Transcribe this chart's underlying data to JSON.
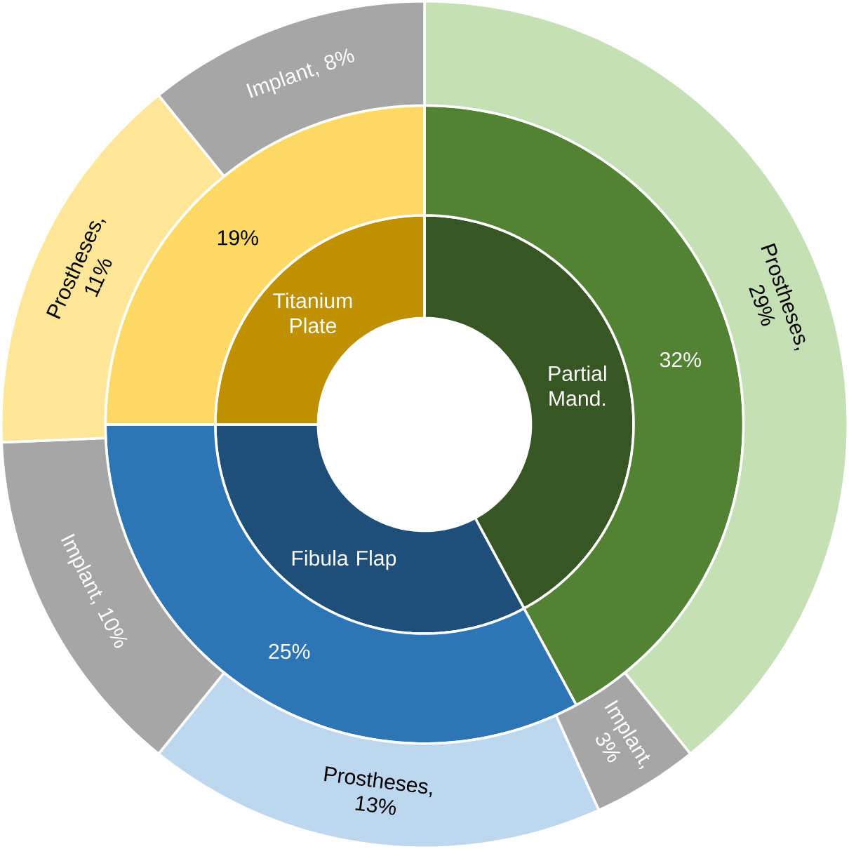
{
  "chart_data": [
    {
      "type": "donut",
      "categories": [
        "Partial Mand.",
        "Fibula Flap",
        "Titanium Plate"
      ],
      "values": [
        42.1,
        32.9,
        25
      ],
      "colors": [
        "#375623",
        "#1f4e79",
        "#bf9000"
      ]
    },
    {
      "type": "donut",
      "categories": [
        null,
        null,
        null
      ],
      "values": [
        32,
        25,
        19
      ],
      "colors": [
        "#548235",
        "#2e75b6",
        "#ffd966"
      ],
      "value_labels": [
        "32%",
        "25%",
        "19%"
      ]
    },
    {
      "type": "donut",
      "categories": [
        null,
        null,
        null,
        null,
        null,
        null
      ],
      "values": [
        29,
        3,
        13,
        10,
        11,
        8
      ],
      "colors": [
        "#c5e0b4",
        "#a6a6a6",
        "#bdd7ee",
        "#a6a6a6",
        "#ffe699",
        "#a6a6a6"
      ],
      "value_labels": [
        "Prostheses, 29%",
        "Implant, 3%",
        "Prostheses, 13%",
        "Implant, 10%",
        "Prostheses, 11%",
        "Implant, 8%"
      ]
    }
  ]
}
